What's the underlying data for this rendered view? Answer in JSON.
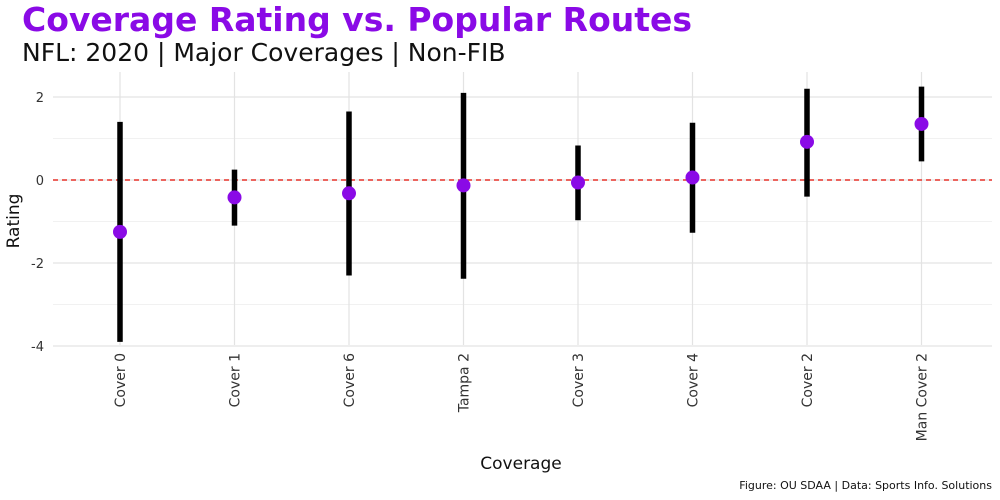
{
  "colors": {
    "title": "#8a0ae6",
    "point": "#8a0ae6",
    "range": "#000000",
    "reference_line": "#e8322a",
    "grid_major": "#e3e3e3",
    "grid_minor": "#f1f1f1",
    "text": "#111111",
    "tick_text": "#333333",
    "background": "#ffffff"
  },
  "chart_data": {
    "type": "pointrange",
    "title": "Coverage Rating vs. Popular Routes",
    "subtitle": "NFL: 2020 | Major Coverages | Non-FIB",
    "xlabel": "Coverage",
    "ylabel": "Rating",
    "caption": "Figure: OU SDAA | Data: Sports Info. Solutions",
    "categories": [
      "Cover 0",
      "Cover 1",
      "Cover 6",
      "Tampa 2",
      "Cover 3",
      "Cover 4",
      "Cover 2",
      "Man Cover 2"
    ],
    "values": [
      -1.25,
      -0.42,
      -0.32,
      -0.13,
      -0.06,
      0.06,
      0.92,
      1.35
    ],
    "lower": [
      -3.9,
      -1.1,
      -2.3,
      -2.38,
      -0.97,
      -1.27,
      -0.4,
      0.45
    ],
    "upper": [
      1.4,
      0.25,
      1.65,
      2.1,
      0.83,
      1.38,
      2.2,
      2.25
    ],
    "reference_line": {
      "y": 0,
      "style": "dashed"
    },
    "ylim": [
      -4,
      2
    ],
    "y_ticks": [
      "-4",
      "-2",
      "0",
      "2"
    ],
    "y_tick_values": [
      -4,
      -2,
      0,
      2
    ],
    "x_tick_rotation": "vertical",
    "grid": true,
    "legend": "none"
  }
}
